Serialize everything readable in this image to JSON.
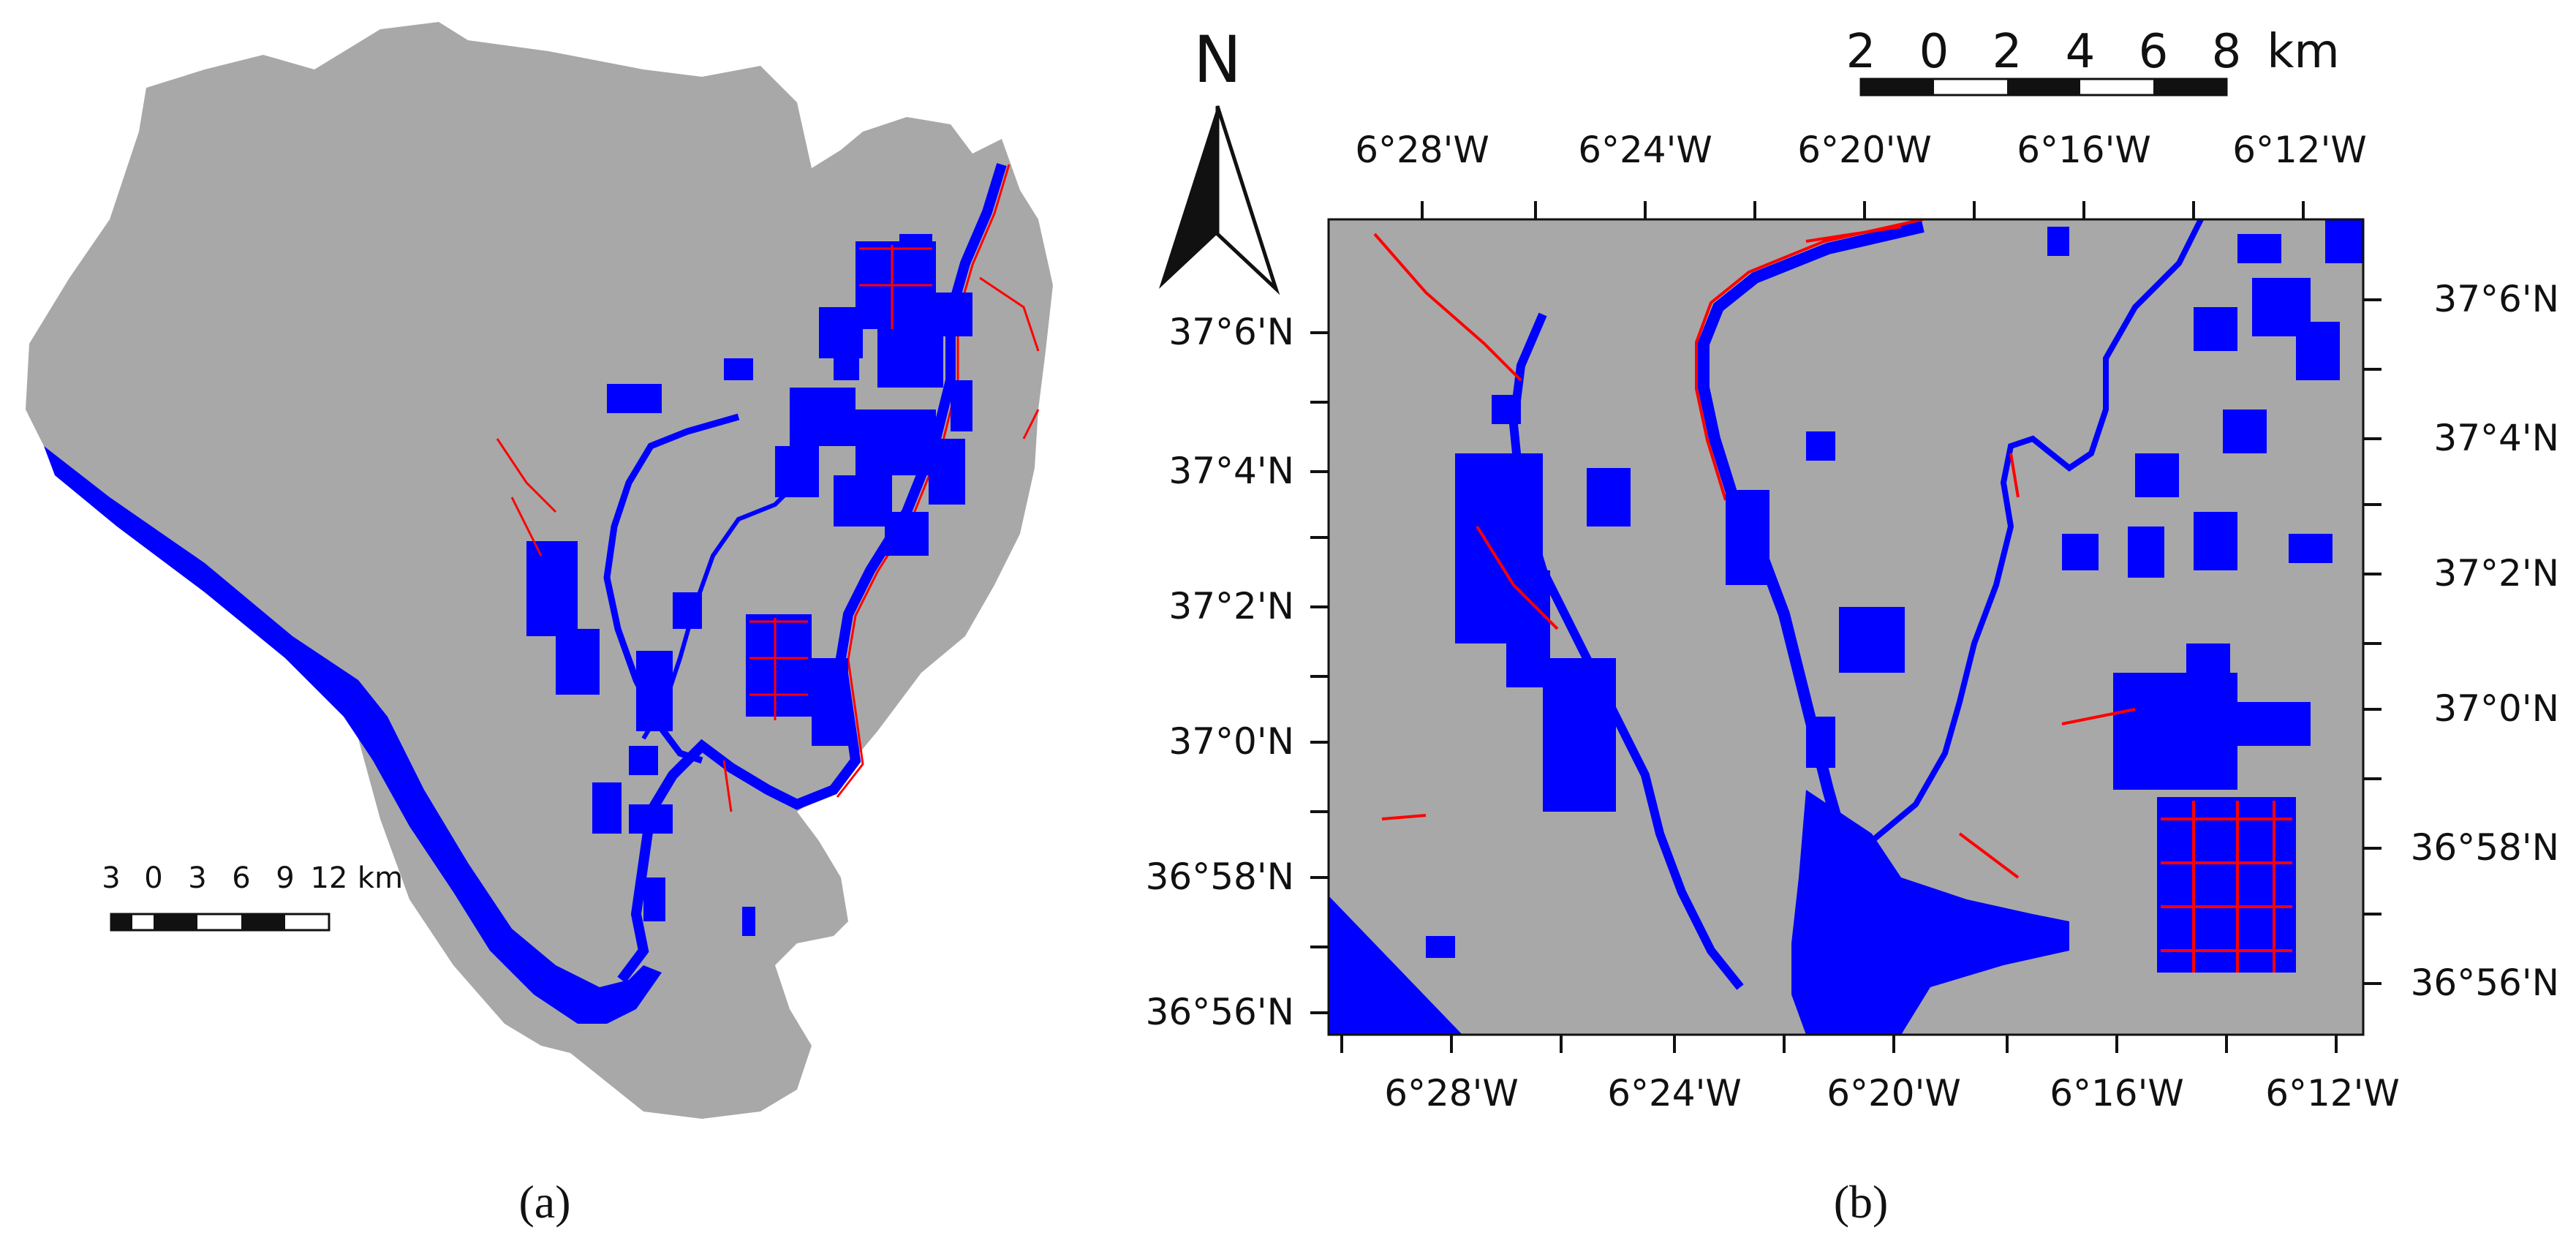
{
  "colors": {
    "land": "#a8a8a8",
    "water": "#0000ff",
    "edge": "#ff0000",
    "ink": "#111111"
  },
  "panel_a": {
    "caption": "(a)",
    "scale": {
      "ticks": [
        "3",
        "0",
        "3",
        "6",
        "9",
        "12"
      ],
      "unit": "km"
    }
  },
  "panel_b": {
    "caption": "(b)",
    "north_label": "N",
    "scale": {
      "ticks": [
        "2",
        "0",
        "2",
        "4",
        "6",
        "8"
      ],
      "unit": "km"
    },
    "lon_labels": [
      "6°28'W",
      "6°24'W",
      "6°20'W",
      "6°16'W",
      "6°12'W"
    ],
    "lat_labels_left": [
      "37°6'N",
      "37°4'N",
      "37°2'N",
      "37°0'N",
      "36°58'N",
      "36°56'N"
    ],
    "lat_labels_right": [
      "37°6'N",
      "37°4'N",
      "37°2'N",
      "37°0'N",
      "36°58'N",
      "36°56'N"
    ]
  }
}
